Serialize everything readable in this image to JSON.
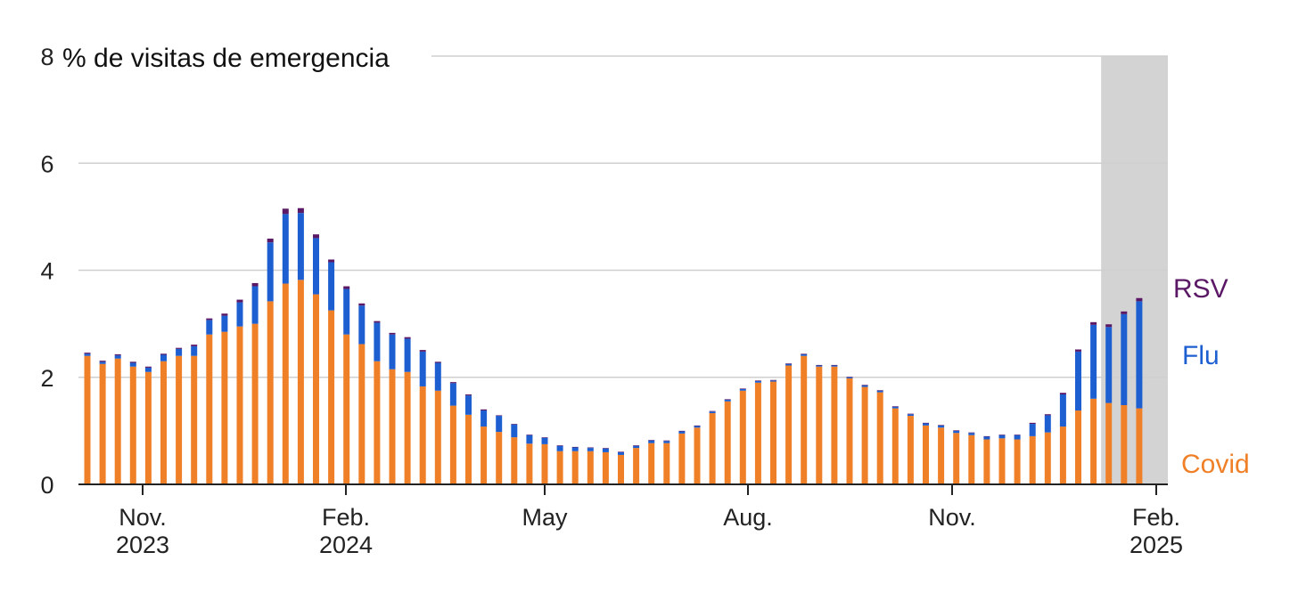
{
  "chart_data": {
    "type": "bar",
    "stacked": true,
    "ylabel": "% de visitas de emergencia",
    "ylim": [
      0,
      8
    ],
    "y_ticks": [
      "0",
      "2",
      "4",
      "6",
      "8"
    ],
    "grid": true,
    "x_ticks": [
      {
        "month": "Nov.",
        "year": "2023"
      },
      {
        "month": "Feb.",
        "year": "2024"
      },
      {
        "month": "May",
        "year": ""
      },
      {
        "month": "Aug.",
        "year": ""
      },
      {
        "month": "Nov.",
        "year": ""
      },
      {
        "month": "Feb.",
        "year": "2025"
      }
    ],
    "highlight_last_weeks": 3,
    "series": [
      {
        "name": "Covid",
        "color": "#f08028",
        "values": [
          2.4,
          2.25,
          2.35,
          2.2,
          2.1,
          2.3,
          2.4,
          2.4,
          2.8,
          2.85,
          2.95,
          3.0,
          3.42,
          3.75,
          3.82,
          3.55,
          3.25,
          2.8,
          2.62,
          2.3,
          2.15,
          2.1,
          1.83,
          1.75,
          1.47,
          1.3,
          1.08,
          0.98,
          0.88,
          0.76,
          0.75,
          0.62,
          0.62,
          0.62,
          0.6,
          0.55,
          0.68,
          0.77,
          0.77,
          0.95,
          1.06,
          1.33,
          1.55,
          1.75,
          1.9,
          1.92,
          2.22,
          2.4,
          2.2,
          2.2,
          1.98,
          1.82,
          1.72,
          1.42,
          1.28,
          1.1,
          1.06,
          0.96,
          0.92,
          0.84,
          0.86,
          0.84,
          0.9,
          0.97,
          1.08,
          1.38,
          1.6,
          1.52,
          1.48,
          1.42
        ]
      },
      {
        "name": "Flu",
        "color": "#1d5fd1",
        "values": [
          0.04,
          0.04,
          0.06,
          0.07,
          0.08,
          0.12,
          0.13,
          0.18,
          0.27,
          0.3,
          0.45,
          0.7,
          1.1,
          1.3,
          1.25,
          1.05,
          0.9,
          0.85,
          0.72,
          0.72,
          0.65,
          0.62,
          0.65,
          0.52,
          0.42,
          0.36,
          0.3,
          0.3,
          0.24,
          0.16,
          0.12,
          0.1,
          0.07,
          0.06,
          0.07,
          0.05,
          0.04,
          0.05,
          0.04,
          0.04,
          0.03,
          0.03,
          0.03,
          0.03,
          0.03,
          0.02,
          0.03,
          0.03,
          0.02,
          0.02,
          0.02,
          0.03,
          0.03,
          0.03,
          0.03,
          0.04,
          0.04,
          0.04,
          0.04,
          0.05,
          0.06,
          0.08,
          0.23,
          0.32,
          0.6,
          1.1,
          1.38,
          1.42,
          1.7,
          2.0
        ]
      },
      {
        "name": "RSV",
        "color": "#5a1865",
        "values": [
          0.02,
          0.02,
          0.02,
          0.02,
          0.02,
          0.02,
          0.02,
          0.03,
          0.03,
          0.04,
          0.05,
          0.06,
          0.07,
          0.1,
          0.09,
          0.07,
          0.05,
          0.05,
          0.04,
          0.03,
          0.03,
          0.03,
          0.03,
          0.02,
          0.02,
          0.02,
          0.02,
          0.01,
          0.01,
          0.01,
          0.01,
          0.01,
          0.01,
          0.01,
          0.01,
          0.01,
          0.01,
          0.01,
          0.01,
          0.01,
          0.01,
          0.01,
          0.01,
          0.01,
          0.01,
          0.01,
          0.01,
          0.01,
          0.01,
          0.01,
          0.01,
          0.01,
          0.01,
          0.01,
          0.01,
          0.01,
          0.01,
          0.01,
          0.01,
          0.01,
          0.01,
          0.01,
          0.02,
          0.02,
          0.03,
          0.04,
          0.05,
          0.05,
          0.05,
          0.06
        ]
      }
    ]
  }
}
